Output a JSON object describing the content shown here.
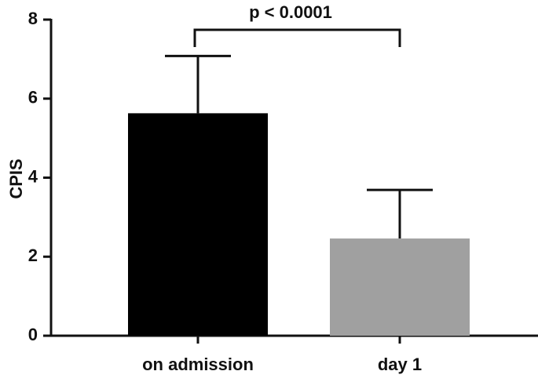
{
  "chart_data": {
    "type": "bar",
    "ylabel": "CPIS",
    "categories": [
      "on admission",
      "day 1"
    ],
    "values": [
      5.63,
      2.46
    ],
    "errors": [
      1.45,
      1.23
    ],
    "colors": [
      "#000000",
      "#a0a0a0"
    ],
    "ylim": [
      0,
      8
    ],
    "yticks": [
      0,
      2,
      4,
      6,
      8
    ],
    "annotation": "p < 0.0001"
  }
}
